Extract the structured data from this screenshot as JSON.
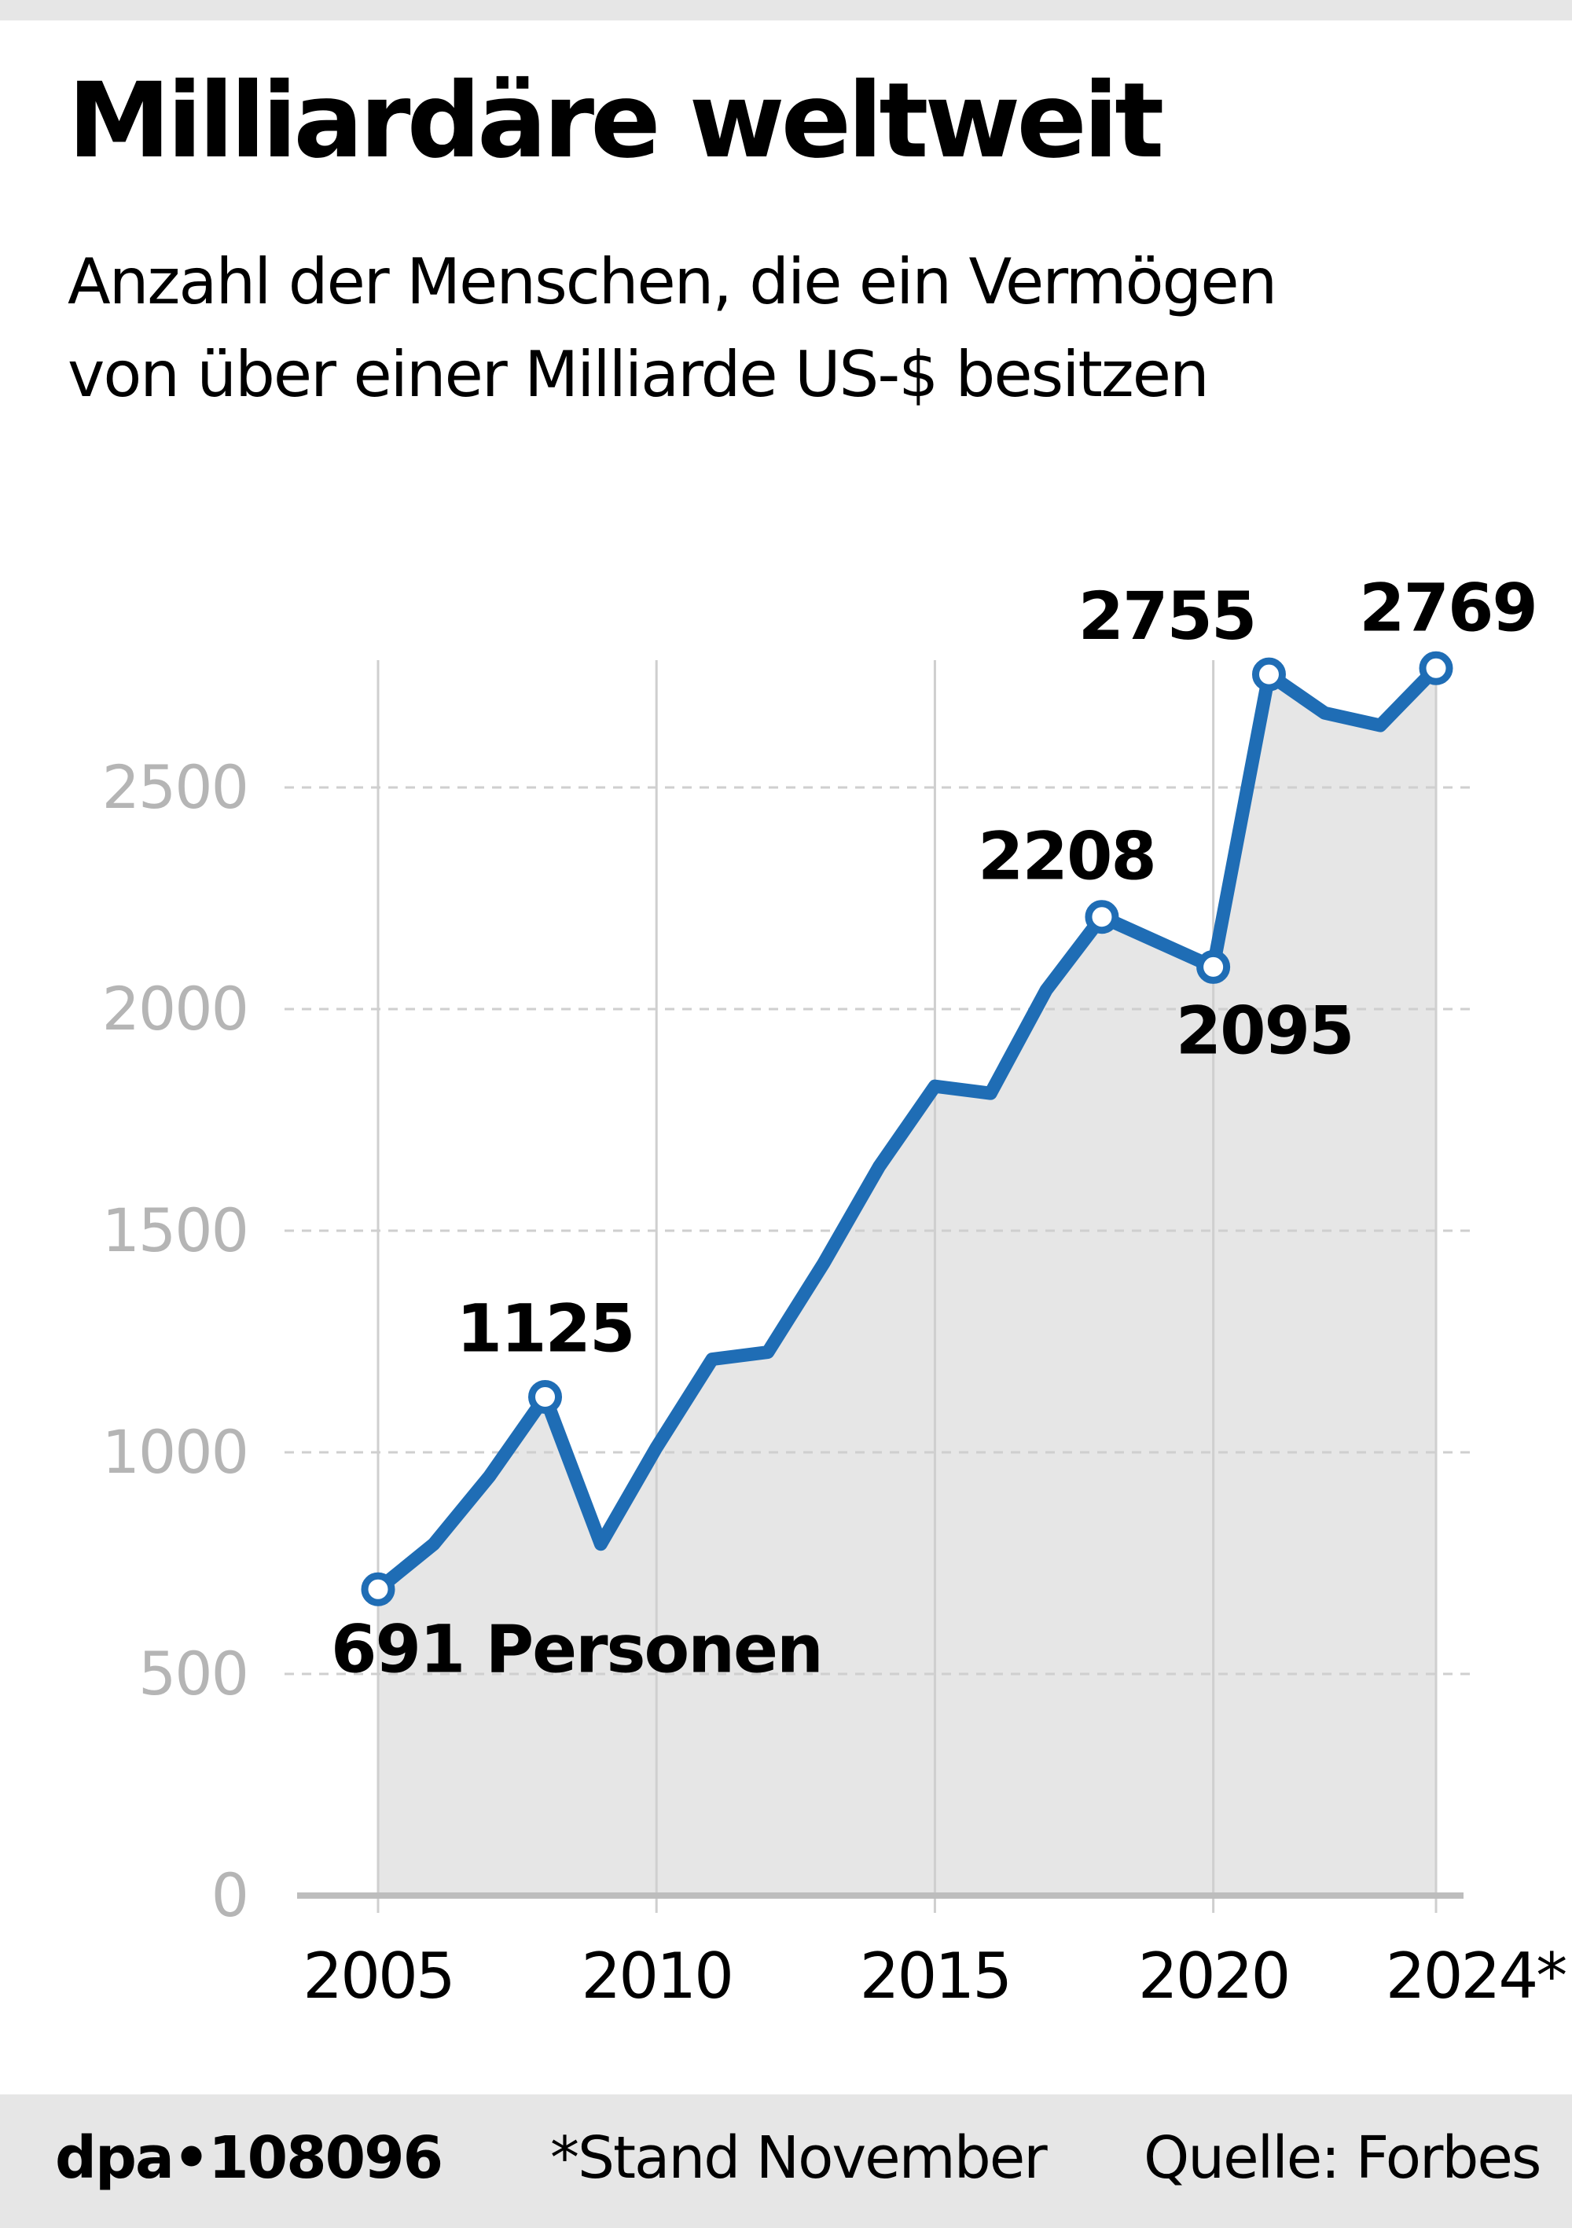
{
  "header": {
    "title": "Milliardäre weltweit",
    "subtitle_lines": [
      "Anzahl der Menschen, die ein Vermögen",
      "von über einer Milliarde US-$ besitzen"
    ]
  },
  "footer": {
    "agency_id": "dpa•108096",
    "note": "*Stand November",
    "source": "Quelle: Forbes"
  },
  "colors": {
    "line": "#1f6db5",
    "area": "#e6e6e6",
    "grid": "#cfcfcf",
    "axis": "#bdbdbd",
    "tick_label": "#b5b5b5",
    "footer_bg": "#e6e6e6"
  },
  "chart_data": {
    "type": "area",
    "title": "Milliardäre weltweit",
    "subtitle": "Anzahl der Menschen, die ein Vermögen von über einer Milliarde US-$ besitzen",
    "xlabel": "",
    "ylabel": "",
    "x": [
      2005,
      2006,
      2007,
      2008,
      2009,
      2010,
      2011,
      2012,
      2013,
      2014,
      2015,
      2016,
      2017,
      2018,
      2020,
      2021,
      2022,
      2023,
      2024
    ],
    "series": [
      {
        "name": "Milliardäre",
        "values": [
          691,
          793,
          946,
          1125,
          793,
          1011,
          1210,
          1226,
          1426,
          1645,
          1826,
          1810,
          2043,
          2208,
          2095,
          2755,
          2668,
          2640,
          2769
        ]
      }
    ],
    "xlim": [
      2005,
      2024
    ],
    "ylim": [
      0,
      2500
    ],
    "yticks": [
      0,
      500,
      1000,
      1500,
      2000,
      2500
    ],
    "ytick_labels": [
      "0",
      "500",
      "1000",
      "1500",
      "2000",
      "2500"
    ],
    "xticks": [
      2005,
      2010,
      2015,
      2020,
      2024
    ],
    "xtick_labels": [
      "2005",
      "2010",
      "2015",
      "2020",
      "2024*"
    ],
    "grid": {
      "horizontal": "dashed",
      "vertical": "solid"
    },
    "highlighted_points": [
      {
        "x": 2005,
        "y": 691,
        "label": "691 Personen",
        "position": "below-right"
      },
      {
        "x": 2008,
        "y": 1125,
        "label": "1125",
        "position": "above"
      },
      {
        "x": 2018,
        "y": 2208,
        "label": "2208",
        "position": "above-left"
      },
      {
        "x": 2020,
        "y": 2095,
        "label": "2095",
        "position": "below-right"
      },
      {
        "x": 2021,
        "y": 2755,
        "label": "2755",
        "position": "above-left"
      },
      {
        "x": 2024,
        "y": 2769,
        "label": "2769",
        "position": "above"
      }
    ],
    "legend": "none"
  }
}
